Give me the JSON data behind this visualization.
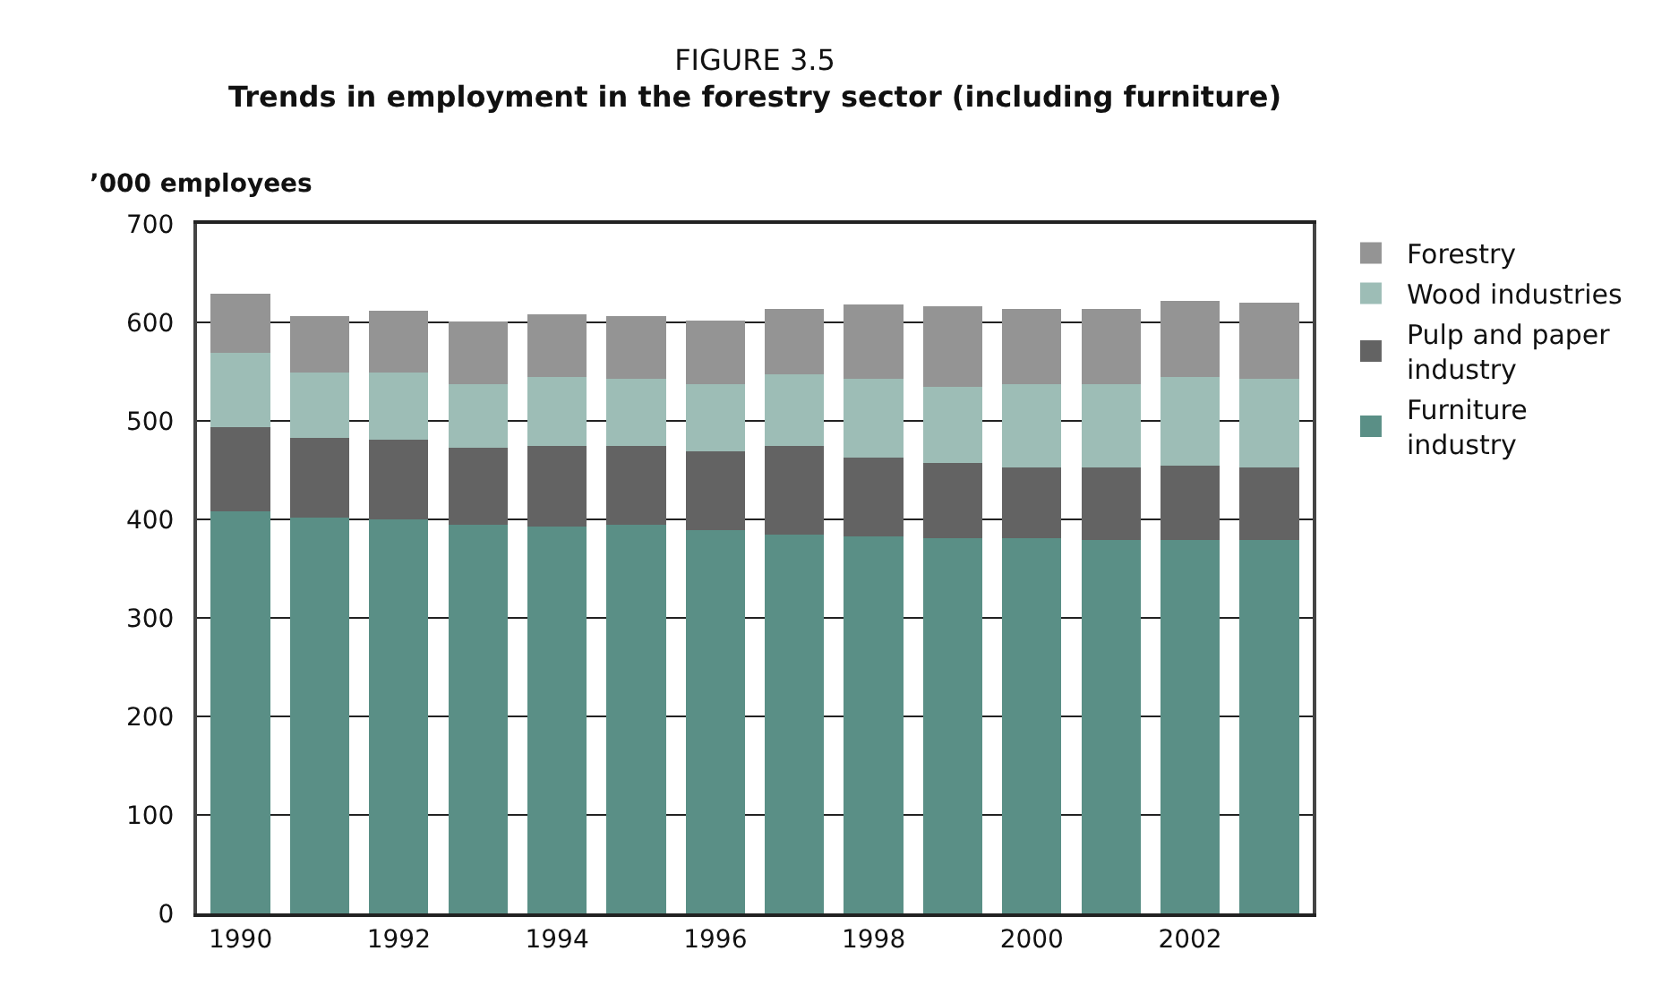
{
  "chart_data": {
    "type": "bar",
    "title": "FIGURE 3.5",
    "subtitle": "Trends in employment in the forestry sector (including furniture)",
    "ylabel": "’000 employees",
    "categories": [
      "1990",
      null,
      "1992",
      null,
      "1994",
      null,
      "1996",
      null,
      "1998",
      null,
      "2000",
      null,
      "2002",
      null
    ],
    "stacked": true,
    "ylim": [
      0,
      700
    ],
    "yticks": [
      0,
      100,
      200,
      300,
      400,
      500,
      600,
      700
    ],
    "grid": "y",
    "legend": "right",
    "series": [
      {
        "name": "Furniture industry",
        "color": "#5a8f86",
        "values": [
          408,
          402,
          400,
          395,
          393,
          395,
          389,
          385,
          383,
          381,
          381,
          379,
          379,
          379
        ]
      },
      {
        "name": "Pulp and paper industry",
        "color": "#636363",
        "values": [
          86,
          81,
          81,
          78,
          82,
          80,
          80,
          90,
          80,
          76,
          72,
          74,
          76,
          74
        ]
      },
      {
        "name": "Wood industries",
        "color": "#9dbdb6",
        "values": [
          75,
          66,
          68,
          64,
          70,
          68,
          68,
          72,
          80,
          78,
          84,
          84,
          90,
          90
        ]
      },
      {
        "name": "Forestry",
        "color": "#949494",
        "values": [
          60,
          57,
          63,
          64,
          63,
          63,
          65,
          67,
          75,
          81,
          77,
          77,
          77,
          77
        ]
      }
    ]
  }
}
